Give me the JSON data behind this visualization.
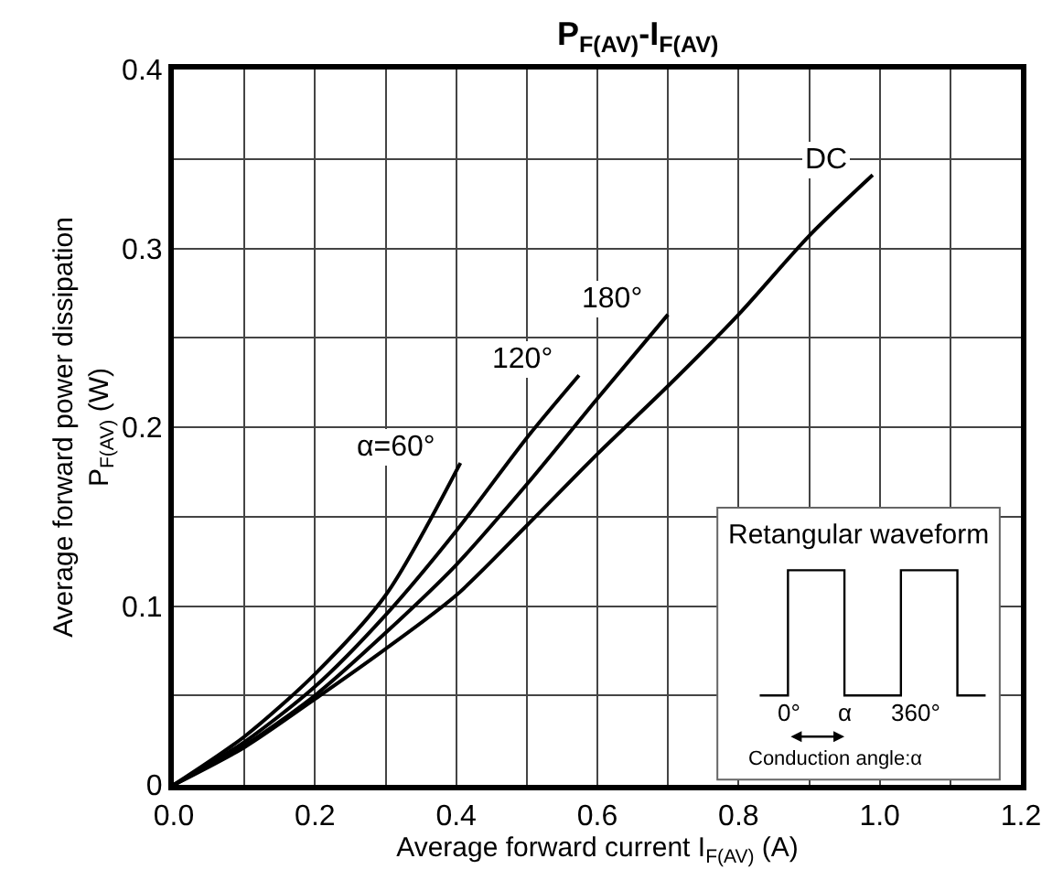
{
  "chart_data": {
    "type": "line",
    "title": "P$_{F(AV)}$-I$_{F(AV)}$",
    "xlabel": "Average forward current I$_{F(AV)}$ (A)",
    "ylabel": "Average forward power dissipation\nP$_{F(AV)}$ (W)",
    "xlim": [
      0,
      1.2
    ],
    "xticks": [
      {
        "value": 0,
        "label": "0.0"
      },
      0.2,
      0.4,
      0.6,
      0.8,
      {
        "value": 1.0,
        "label": "1.0"
      },
      1.2
    ],
    "ylim": [
      0,
      0.4
    ],
    "yticks": [
      0,
      0.1,
      0.2,
      0.3,
      0.4
    ],
    "grid": true,
    "legend": false,
    "marker": "none",
    "line_style": "solid",
    "series": [
      {
        "name": "α=60°",
        "color": "#000000",
        "x": [
          0,
          0.1,
          0.2,
          0.3,
          0.406
        ],
        "values": [
          0,
          0.027,
          0.062,
          0.106,
          0.18
        ]
      },
      {
        "name": "120°",
        "color": "#000000",
        "x": [
          0,
          0.1,
          0.2,
          0.3,
          0.4,
          0.5,
          0.574
        ],
        "values": [
          0,
          0.024,
          0.055,
          0.095,
          0.142,
          0.194,
          0.229
        ]
      },
      {
        "name": "180°",
        "color": "#000000",
        "x": [
          0,
          0.1,
          0.2,
          0.3,
          0.4,
          0.5,
          0.6,
          0.7
        ],
        "values": [
          0,
          0.022,
          0.05,
          0.085,
          0.123,
          0.168,
          0.216,
          0.263
        ]
      },
      {
        "name": "DC",
        "color": "#000000",
        "x": [
          0,
          0.1,
          0.2,
          0.3,
          0.4,
          0.5,
          0.6,
          0.7,
          0.8,
          0.9,
          0.99
        ],
        "values": [
          0,
          0.021,
          0.048,
          0.076,
          0.106,
          0.145,
          0.185,
          0.223,
          0.263,
          0.307,
          0.341
        ]
      }
    ],
    "annotations": [
      "Retangular waveform",
      "0°",
      "α",
      "360°",
      "Conduction angle:α"
    ]
  }
}
